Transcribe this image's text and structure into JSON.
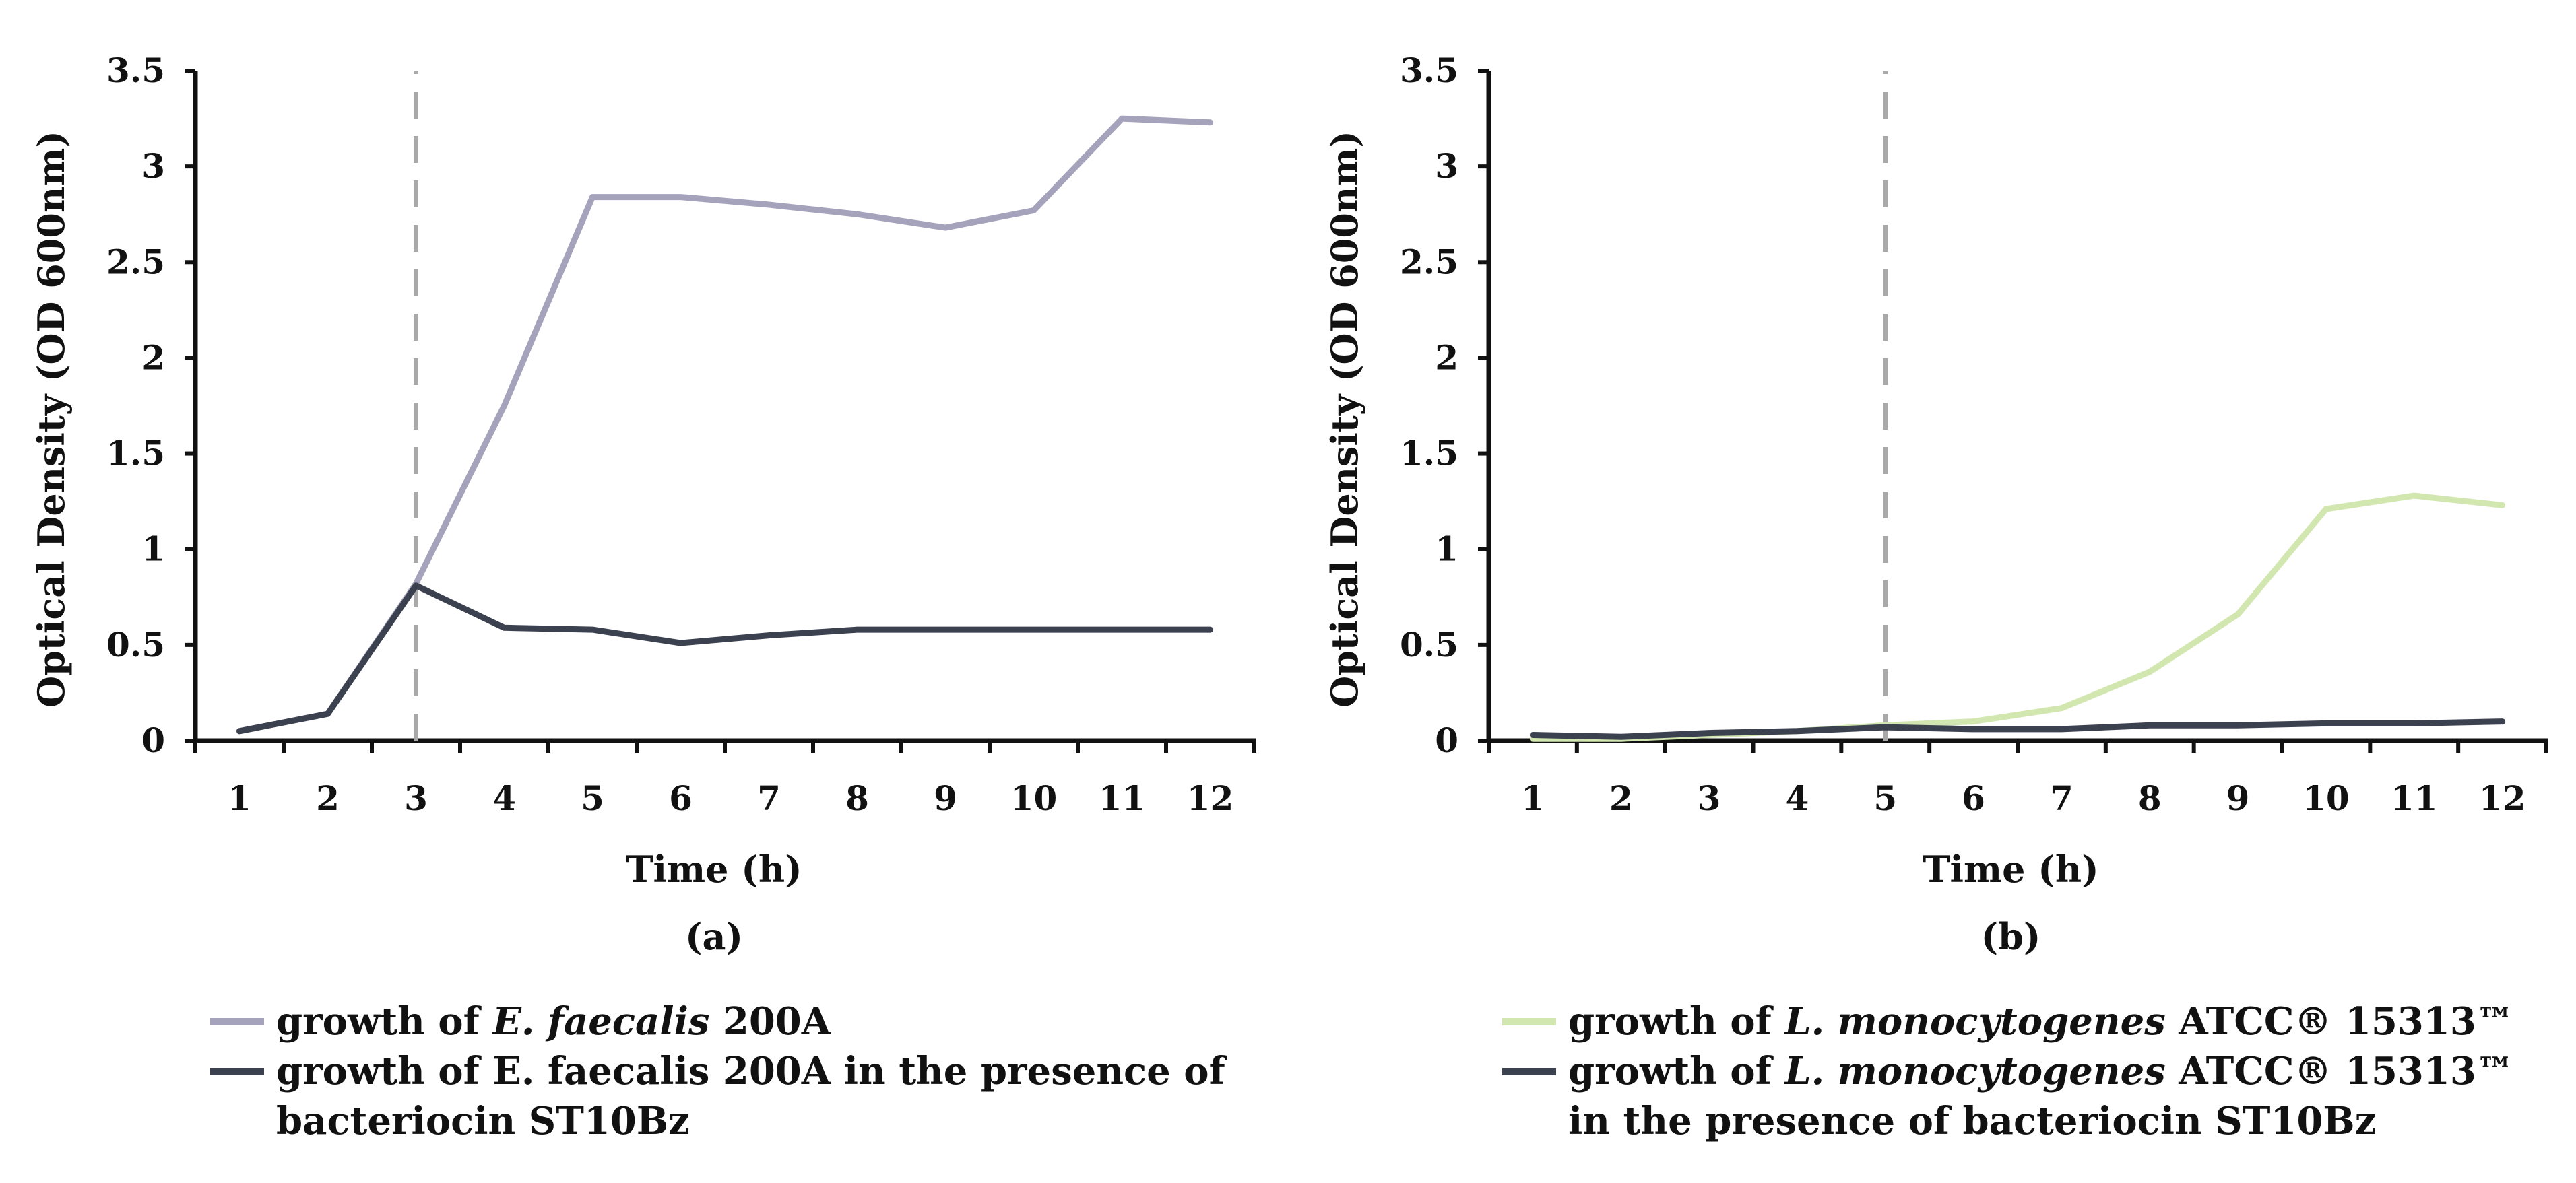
{
  "chart_data": [
    {
      "type": "line",
      "panel_label": "(a)",
      "xlabel": "Time (h)",
      "ylabel": "Optical Density (OD 600nm)",
      "categories": [
        "1",
        "2",
        "3",
        "4",
        "5",
        "6",
        "7",
        "8",
        "9",
        "10",
        "11",
        "12"
      ],
      "yticks": [
        "0",
        "0.5",
        "1",
        "1.5",
        "2",
        "2.5",
        "3",
        "3.5"
      ],
      "ylim": [
        0,
        3.5
      ],
      "annotation_x": 3,
      "series": [
        {
          "name": "growth of E. faecalis 200A",
          "color": "#a5a3bc",
          "values": [
            0.05,
            0.14,
            0.82,
            1.75,
            2.84,
            2.84,
            2.8,
            2.75,
            2.68,
            2.77,
            3.25,
            3.23
          ]
        },
        {
          "name": "growth of E. faecalis 200A in the presence of bacteriocin ST10Bz",
          "color": "#3c4150",
          "values": [
            0.05,
            0.14,
            0.81,
            0.59,
            0.58,
            0.51,
            0.55,
            0.58,
            0.58,
            0.58,
            0.58,
            0.58
          ]
        }
      ]
    },
    {
      "type": "line",
      "panel_label": "(b)",
      "xlabel": "Time (h)",
      "ylabel": "Optical Density (OD 600nm)",
      "categories": [
        "1",
        "2",
        "3",
        "4",
        "5",
        "6",
        "7",
        "8",
        "9",
        "10",
        "11",
        "12"
      ],
      "yticks": [
        "0",
        "0.5",
        "1",
        "1.5",
        "2",
        "2.5",
        "3",
        "3.5"
      ],
      "ylim": [
        0,
        3.5
      ],
      "annotation_x": 5,
      "series": [
        {
          "name": "growth of L. monocytogenes ATCC® 15313™",
          "color": "#d2e7b0",
          "values": [
            0.01,
            0.01,
            0.03,
            0.05,
            0.08,
            0.1,
            0.17,
            0.36,
            0.66,
            1.21,
            1.28,
            1.23
          ]
        },
        {
          "name": "growth of L. monocytogenes ATCC® 15313™ in the presence of bacteriocin ST10Bz",
          "color": "#3c4150",
          "values": [
            0.03,
            0.02,
            0.04,
            0.05,
            0.07,
            0.06,
            0.06,
            0.08,
            0.08,
            0.09,
            0.09,
            0.1
          ]
        }
      ]
    }
  ],
  "legends": {
    "a": {
      "item1": {
        "prefix": "growth of ",
        "italic": "E. faecalis",
        "suffix": " 200A"
      },
      "item2": {
        "line1": "growth of E. faecalis 200A in the presence of",
        "line2": "bacteriocin ST10Bz"
      }
    },
    "b": {
      "item1": {
        "prefix": "growth of ",
        "italic": "L. monocytogenes",
        "suffix": " ATCC® 15313™"
      },
      "item2": {
        "prefix": "growth of ",
        "italic": "L. monocytogenes",
        "suffix": " ATCC® 15313™",
        "line2": "in the presence of bacteriocin ST10Bz"
      }
    }
  }
}
